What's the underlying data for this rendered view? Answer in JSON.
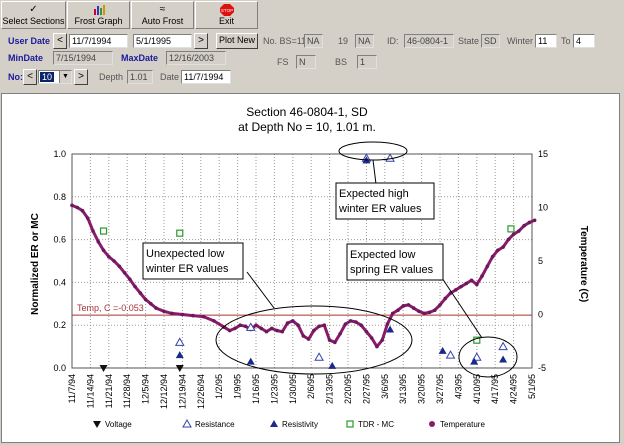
{
  "toolbar": {
    "select_sections": "Select Sections",
    "frost_graph": "Frost Graph",
    "auto_frost": "Auto Frost",
    "exit": "Exit",
    "exit_icon_text": "STOP"
  },
  "form": {
    "user_date_label": "User Date",
    "user_date_from": "11/7/1994",
    "user_date_to": "5/1/1995",
    "plot_new": "Plot New",
    "no_bs_label": "No. BS=11",
    "no_bs_value": "NA",
    "n19_label": "19",
    "n19_value": "NA",
    "id_label": "ID:",
    "id_value": "46-0804-1",
    "state_label": "State",
    "state_value": "SD",
    "winter_label": "Winter",
    "winter_value": "11",
    "to_label": "To",
    "to_value": "4",
    "min_date_label": "MinDate",
    "min_date_value": "7/15/1994",
    "max_date_label": "MaxDate",
    "max_date_value": "12/16/2003",
    "fs_label": "FS",
    "fs_value": "N",
    "bs_label": "BS",
    "bs_value": "1",
    "no_label": "No:",
    "no_value": "10",
    "depth_label": "Depth",
    "depth_value": "1.01",
    "date_label": "Date",
    "date_value": "11/7/1994"
  },
  "annotations": {
    "unexpected": [
      "Unexpected low",
      "winter ER values"
    ],
    "high": [
      "Expected high",
      "winter ER values"
    ],
    "spring": [
      "Expected low",
      "spring ER values"
    ],
    "temp_line": "Temp, C =-0.053"
  },
  "chart_data": {
    "type": "scatter",
    "title": "Section 46-0804-1, SD",
    "subtitle": "at Depth No = 10, 1.01 m.",
    "ylabel": "Normalized ER or MC",
    "y2label": "Temperature (C)",
    "ylim": [
      0,
      1.0
    ],
    "y2lim": [
      -5,
      15
    ],
    "x_ticks": [
      "11/7/94",
      "11/14/94",
      "11/21/94",
      "11/28/94",
      "12/5/94",
      "12/12/94",
      "12/19/94",
      "12/26/94",
      "1/2/95",
      "1/9/95",
      "1/16/95",
      "1/23/95",
      "1/30/95",
      "2/6/95",
      "2/13/95",
      "2/20/95",
      "2/27/95",
      "3/6/95",
      "3/13/95",
      "3/20/95",
      "3/27/95",
      "4/3/95",
      "4/10/95",
      "4/17/95",
      "4/24/95",
      "5/1/95"
    ],
    "y_ticks": [
      "0.0",
      "0.2",
      "0.4",
      "0.6",
      "0.8",
      "1.0"
    ],
    "y2_ticks": [
      "15",
      "10",
      "5",
      "0",
      "-5"
    ],
    "grid": true,
    "temp_reference_c": -0.053,
    "legend": [
      "Voltage",
      "Resistance",
      "Resistivity",
      "TDR - MC",
      "Temperature"
    ],
    "series": [
      {
        "name": "Temperature",
        "x_day": [
          0,
          2,
          4,
          6,
          8,
          10,
          12,
          14,
          16,
          18,
          20,
          22,
          24,
          26,
          28,
          30,
          32,
          35,
          38,
          42,
          46,
          50,
          54,
          58,
          60,
          62,
          64,
          66,
          68,
          70,
          72,
          74,
          76,
          78,
          80,
          82,
          84,
          86,
          88,
          90,
          92,
          94,
          96,
          98,
          100,
          102,
          104,
          106,
          108,
          110,
          112,
          114,
          116,
          118,
          120,
          122,
          124,
          126,
          128,
          130,
          132,
          134,
          136,
          138,
          140,
          142,
          144,
          146,
          148,
          150,
          152,
          154,
          156,
          158,
          160,
          162,
          164,
          166,
          168,
          170,
          172,
          174,
          176
        ],
        "y_c": [
          10.2,
          10.0,
          9.7,
          9.0,
          7.8,
          6.8,
          6.0,
          5.4,
          5.0,
          4.5,
          3.9,
          3.3,
          2.6,
          2.0,
          1.4,
          1.0,
          0.6,
          0.3,
          0.1,
          0.0,
          -0.1,
          -0.2,
          -0.6,
          -1.2,
          -1.5,
          -1.3,
          -1.0,
          -1.1,
          -1.4,
          -1.0,
          -1.3,
          -1.6,
          -1.3,
          -1.5,
          -1.6,
          -0.8,
          -0.6,
          -1.0,
          -2.0,
          -2.3,
          -1.5,
          -1.1,
          -1.0,
          -2.4,
          -2.6,
          -1.8,
          -0.9,
          -0.6,
          -0.7,
          -1.0,
          -1.6,
          -2.2,
          -3.0,
          -2.4,
          -0.9,
          0.1,
          0.4,
          0.8,
          0.9,
          0.6,
          0.3,
          0.1,
          0.2,
          0.4,
          0.9,
          1.5,
          2.0,
          2.3,
          2.6,
          2.9,
          3.2,
          2.8,
          3.6,
          4.5,
          5.4,
          6.0,
          6.3,
          7.0,
          7.5,
          7.8,
          8.3,
          8.6,
          8.8
        ]
      },
      {
        "name": "TDR - MC",
        "x_day": [
          12,
          41,
          154,
          167
        ],
        "y": [
          0.64,
          0.63,
          0.13,
          0.65
        ]
      },
      {
        "name": "Resistance",
        "x_day": [
          41,
          68,
          94,
          112,
          121,
          144,
          154,
          164
        ],
        "y": [
          0.12,
          0.19,
          0.05,
          0.98,
          0.98,
          0.06,
          0.05,
          0.1
        ]
      },
      {
        "name": "Resistivity",
        "x_day": [
          41,
          68,
          99,
          112,
          121,
          141,
          153,
          164
        ],
        "y": [
          0.06,
          0.03,
          0.01,
          0.97,
          0.18,
          0.08,
          0.03,
          0.04
        ]
      },
      {
        "name": "Voltage",
        "x_day": [
          12,
          41
        ],
        "y": [
          0.0,
          0.0
        ]
      }
    ]
  }
}
